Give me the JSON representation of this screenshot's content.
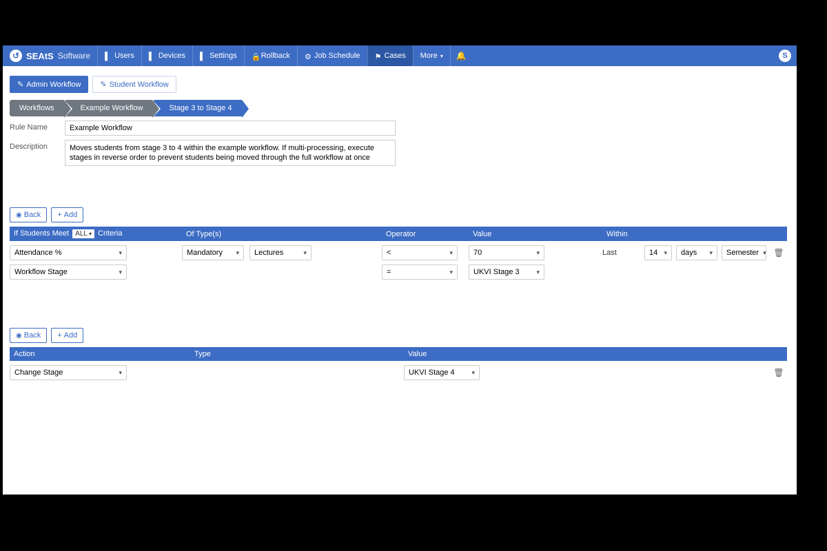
{
  "brand": {
    "bold": "SEAtS",
    "light": "Software",
    "logo_letter": "↺"
  },
  "nav": {
    "items": [
      {
        "label": "Users",
        "name": "nav-users"
      },
      {
        "label": "Devices",
        "name": "nav-devices"
      },
      {
        "label": "Settings",
        "name": "nav-settings"
      },
      {
        "label": "Rollback",
        "name": "nav-rollback"
      },
      {
        "label": "Job Schedule",
        "name": "nav-job-schedule"
      },
      {
        "label": "Cases",
        "name": "nav-cases",
        "active": true
      },
      {
        "label": "More",
        "name": "nav-more",
        "has_caret": true
      }
    ],
    "avatar_letter": "S"
  },
  "tabs": {
    "admin": "Admin Workflow",
    "student": "Student Workflow"
  },
  "breadcrumb": {
    "a": "Workflows",
    "b": "Example Workflow",
    "c": "Stage 3 to Stage 4"
  },
  "form": {
    "rule_name_label": "Rule Name",
    "rule_name_value": "Example Workflow",
    "desc_label": "Description",
    "desc_value": "Moves students from stage 3 to 4 within the example workflow. If multi-processing, execute stages in reverse order to prevent students being moved through the full workflow at once"
  },
  "buttons": {
    "back": "Back",
    "add": "Add"
  },
  "criteria": {
    "head_prefix": "If Students Meet",
    "head_all": "ALL",
    "head_suffix": "Criteria",
    "head_type": "Of Type(s)",
    "head_op": "Operator",
    "head_val": "Value",
    "head_within": "Within",
    "rows": [
      {
        "criteria": "Attendance %",
        "type_a": "Mandatory",
        "type_b": "Lectures",
        "op": "<",
        "val": "70",
        "within_last": "Last",
        "within_n": "14",
        "within_unit": "days",
        "within_scope": "Semester"
      },
      {
        "criteria": "Workflow Stage",
        "type_a": "",
        "type_b": "",
        "op": "=",
        "val": "UKVI Stage 3"
      }
    ]
  },
  "actions": {
    "head_action": "Action",
    "head_type": "Type",
    "head_value": "Value",
    "rows": [
      {
        "action": "Change Stage",
        "type": "",
        "value": "UKVI Stage 4"
      }
    ]
  },
  "colors": {
    "primary": "#3c6cc4"
  }
}
